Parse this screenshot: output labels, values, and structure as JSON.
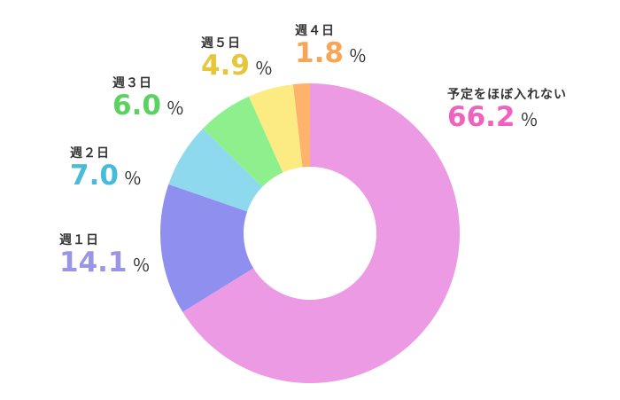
{
  "chart_data": {
    "type": "pie",
    "categories": [
      "予定をほぼ入れない",
      "週１日",
      "週２日",
      "週３日",
      "週５日",
      "週４日"
    ],
    "values": [
      66.2,
      14.1,
      7.0,
      6.0,
      4.9,
      1.8
    ],
    "value_labels": [
      "66.2",
      "14.1",
      "7.0",
      "6.0",
      "4.9",
      "1.8"
    ],
    "unit": "％",
    "colors": [
      "#ec9ae4",
      "#8e8fee",
      "#8fd9ee",
      "#8df08d",
      "#fbeb82",
      "#fdb36b"
    ],
    "label_colors": [
      "#ef62be",
      "#9996e6",
      "#47bbd9",
      "#59d35f",
      "#e6c63c",
      "#f8a656"
    ],
    "donut": true,
    "legend": "none",
    "title": ""
  }
}
